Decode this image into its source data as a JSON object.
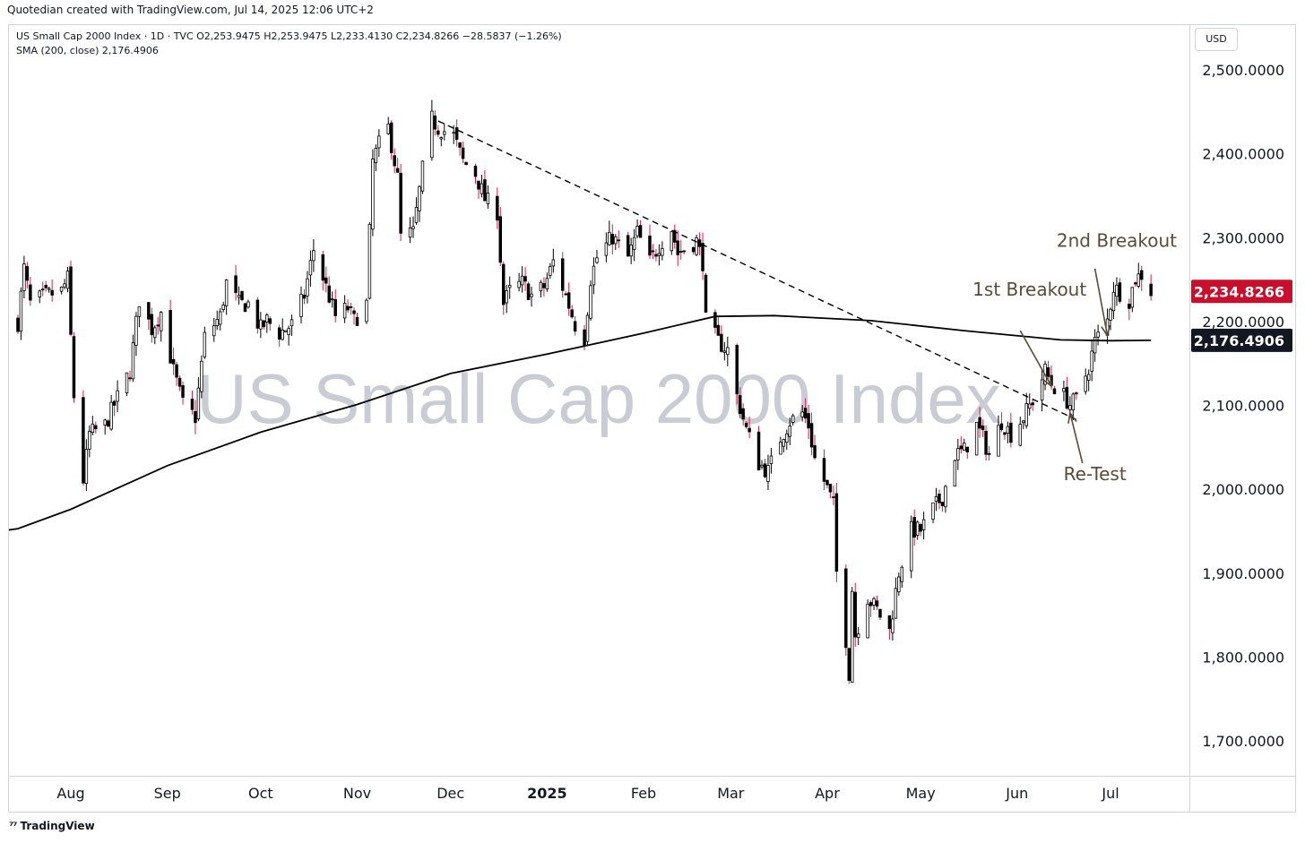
{
  "header": {
    "credit": "Quotedian created with TradingView.com, Jul 14, 2025 12:06 UTC+2",
    "legend_main": "US Small Cap 2000 Index · 1D · TVC  O2,253.9475  H2,253.9475  L2,233.4130  C2,234.8266  −28.5837 (−1.26%)",
    "legend_sma": "SMA (200, close)  2,176.4906"
  },
  "currency_label": "USD",
  "footer_logo": "TradingView",
  "colors": {
    "up_candle": "#ffffff",
    "down_candle": "#e0194e",
    "candle_outline": "#000000",
    "sma": "#000000",
    "last_price_badge": "#c8102e",
    "sma_badge": "#131722",
    "watermark": "#c9ccd4",
    "annotation": "#5a4a36"
  },
  "chart_data": {
    "type": "candlestick",
    "title": "US Small Cap 2000 Index",
    "watermark": "US Small Cap 2000 Index",
    "ylim": [
      1680,
      2540
    ],
    "y_ticks": [
      "2,500.0000",
      "2,400.0000",
      "2,300.0000",
      "2,200.0000",
      "2,100.0000",
      "2,000.0000",
      "1,900.0000",
      "1,800.0000",
      "1,700.0000"
    ],
    "y_tick_values": [
      2500,
      2400,
      2300,
      2200,
      2100,
      2000,
      1900,
      1800,
      1700
    ],
    "x_ticks": [
      {
        "label": "Aug",
        "date": "2024-08-01",
        "bold": false
      },
      {
        "label": "Sep",
        "date": "2024-09-01",
        "bold": false
      },
      {
        "label": "Oct",
        "date": "2024-10-01",
        "bold": false
      },
      {
        "label": "Nov",
        "date": "2024-11-01",
        "bold": false
      },
      {
        "label": "Dec",
        "date": "2024-12-01",
        "bold": false
      },
      {
        "label": "2025",
        "date": "2025-01-01",
        "bold": true
      },
      {
        "label": "Feb",
        "date": "2025-02-01",
        "bold": false
      },
      {
        "label": "Mar",
        "date": "2025-03-01",
        "bold": false
      },
      {
        "label": "Apr",
        "date": "2025-04-01",
        "bold": false
      },
      {
        "label": "May",
        "date": "2025-05-01",
        "bold": false
      },
      {
        "label": "Jun",
        "date": "2025-06-01",
        "bold": false
      },
      {
        "label": "Jul",
        "date": "2025-07-01",
        "bold": false
      }
    ],
    "last_price": {
      "label": "2,234.8266",
      "value": 2234.8266
    },
    "sma_last": {
      "label": "2,176.4906",
      "value": 2176.4906
    },
    "close_path": [
      [
        "2024-07-15",
        2198
      ],
      [
        "2024-07-17",
        2262
      ],
      [
        "2024-07-19",
        2220
      ],
      [
        "2024-07-24",
        2230
      ],
      [
        "2024-07-29",
        2235
      ],
      [
        "2024-07-31",
        2250
      ],
      [
        "2024-08-02",
        2110
      ],
      [
        "2024-08-05",
        2010
      ],
      [
        "2024-08-07",
        2065
      ],
      [
        "2024-08-12",
        2075
      ],
      [
        "2024-08-15",
        2100
      ],
      [
        "2024-08-20",
        2140
      ],
      [
        "2024-08-23",
        2225
      ],
      [
        "2024-08-27",
        2190
      ],
      [
        "2024-08-30",
        2210
      ],
      [
        "2024-09-03",
        2140
      ],
      [
        "2024-09-06",
        2100
      ],
      [
        "2024-09-10",
        2085
      ],
      [
        "2024-09-13",
        2180
      ],
      [
        "2024-09-18",
        2205
      ],
      [
        "2024-09-20",
        2245
      ],
      [
        "2024-09-24",
        2220
      ],
      [
        "2024-09-27",
        2220
      ],
      [
        "2024-10-01",
        2190
      ],
      [
        "2024-10-03",
        2200
      ],
      [
        "2024-10-07",
        2185
      ],
      [
        "2024-10-11",
        2195
      ],
      [
        "2024-10-15",
        2230
      ],
      [
        "2024-10-18",
        2285
      ],
      [
        "2024-10-22",
        2240
      ],
      [
        "2024-10-25",
        2205
      ],
      [
        "2024-10-29",
        2215
      ],
      [
        "2024-10-31",
        2200
      ],
      [
        "2024-11-04",
        2220
      ],
      [
        "2024-11-06",
        2390
      ],
      [
        "2024-11-08",
        2410
      ],
      [
        "2024-11-11",
        2430
      ],
      [
        "2024-11-14",
        2370
      ],
      [
        "2024-11-15",
        2300
      ],
      [
        "2024-11-19",
        2305
      ],
      [
        "2024-11-22",
        2380
      ],
      [
        "2024-11-25",
        2440
      ],
      [
        "2024-11-27",
        2430
      ],
      [
        "2024-12-02",
        2420
      ],
      [
        "2024-12-05",
        2390
      ],
      [
        "2024-12-09",
        2375
      ],
      [
        "2024-12-12",
        2345
      ],
      [
        "2024-12-16",
        2330
      ],
      [
        "2024-12-18",
        2220
      ],
      [
        "2024-12-20",
        2235
      ],
      [
        "2024-12-24",
        2245
      ],
      [
        "2024-12-27",
        2230
      ],
      [
        "2024-12-31",
        2240
      ],
      [
        "2025-01-03",
        2270
      ],
      [
        "2025-01-07",
        2230
      ],
      [
        "2025-01-10",
        2195
      ],
      [
        "2025-01-13",
        2180
      ],
      [
        "2025-01-15",
        2250
      ],
      [
        "2025-01-17",
        2275
      ],
      [
        "2025-01-22",
        2300
      ],
      [
        "2025-01-24",
        2290
      ],
      [
        "2025-01-27",
        2275
      ],
      [
        "2025-01-30",
        2305
      ],
      [
        "2025-02-03",
        2270
      ],
      [
        "2025-02-06",
        2290
      ],
      [
        "2025-02-10",
        2310
      ],
      [
        "2025-02-12",
        2280
      ],
      [
        "2025-02-14",
        2285
      ],
      [
        "2025-02-18",
        2295
      ],
      [
        "2025-02-20",
        2270
      ],
      [
        "2025-02-21",
        2200
      ],
      [
        "2025-02-25",
        2175
      ],
      [
        "2025-02-28",
        2165
      ],
      [
        "2025-03-03",
        2110
      ],
      [
        "2025-03-06",
        2070
      ],
      [
        "2025-03-10",
        2030
      ],
      [
        "2025-03-13",
        2020
      ],
      [
        "2025-03-17",
        2060
      ],
      [
        "2025-03-20",
        2080
      ],
      [
        "2025-03-24",
        2090
      ],
      [
        "2025-03-26",
        2075
      ],
      [
        "2025-03-28",
        2035
      ],
      [
        "2025-04-01",
        2000
      ],
      [
        "2025-04-03",
        1980
      ],
      [
        "2025-04-04",
        1900
      ],
      [
        "2025-04-07",
        1820
      ],
      [
        "2025-04-08",
        1780
      ],
      [
        "2025-04-09",
        1880
      ],
      [
        "2025-04-10",
        1825
      ],
      [
        "2025-04-14",
        1870
      ],
      [
        "2025-04-17",
        1855
      ],
      [
        "2025-04-21",
        1830
      ],
      [
        "2025-04-24",
        1900
      ],
      [
        "2025-04-28",
        1950
      ],
      [
        "2025-05-01",
        1950
      ],
      [
        "2025-05-05",
        1975
      ],
      [
        "2025-05-08",
        1990
      ],
      [
        "2025-05-12",
        2040
      ],
      [
        "2025-05-15",
        2045
      ],
      [
        "2025-05-19",
        2075
      ],
      [
        "2025-05-21",
        2060
      ],
      [
        "2025-05-23",
        2040
      ],
      [
        "2025-05-27",
        2080
      ],
      [
        "2025-05-30",
        2065
      ],
      [
        "2025-06-03",
        2085
      ],
      [
        "2025-06-06",
        2105
      ],
      [
        "2025-06-10",
        2140
      ],
      [
        "2025-06-12",
        2125
      ],
      [
        "2025-06-16",
        2110
      ],
      [
        "2025-06-18",
        2100
      ],
      [
        "2025-06-20",
        2105
      ],
      [
        "2025-06-24",
        2145
      ],
      [
        "2025-06-26",
        2175
      ],
      [
        "2025-06-30",
        2200
      ],
      [
        "2025-07-02",
        2240
      ],
      [
        "2025-07-07",
        2225
      ],
      [
        "2025-07-09",
        2250
      ],
      [
        "2025-07-11",
        2255
      ],
      [
        "2025-07-14",
        2234.8
      ]
    ],
    "sma_200": [
      [
        "2024-07-15",
        1952
      ],
      [
        "2024-08-01",
        1975
      ],
      [
        "2024-09-01",
        2027
      ],
      [
        "2024-10-01",
        2067
      ],
      [
        "2024-11-01",
        2100
      ],
      [
        "2024-12-01",
        2137
      ],
      [
        "2025-01-01",
        2160
      ],
      [
        "2025-02-01",
        2185
      ],
      [
        "2025-02-24",
        2205
      ],
      [
        "2025-03-15",
        2206
      ],
      [
        "2025-04-15",
        2200
      ],
      [
        "2025-05-15",
        2188
      ],
      [
        "2025-06-15",
        2177
      ],
      [
        "2025-07-01",
        2176
      ],
      [
        "2025-07-14",
        2176.49
      ]
    ],
    "trendline": [
      [
        "2024-11-27",
        2438
      ],
      [
        "2025-06-20",
        2082
      ]
    ],
    "annotations": [
      {
        "text": "2nd Breakout",
        "date": "2025-07-03",
        "value": 2288,
        "arrow_from": [
          "2025-06-26",
          2262
        ],
        "arrow_to": [
          "2025-06-30",
          2182
        ]
      },
      {
        "text": "1st Breakout",
        "date": "2025-06-05",
        "value": 2230,
        "arrow_from": [
          "2025-06-02",
          2188
        ],
        "arrow_to": [
          "2025-06-12",
          2122
        ]
      },
      {
        "text": "Re-Test",
        "date": "2025-06-26",
        "value": 2010,
        "arrow_from": [
          "2025-06-22",
          2030
        ],
        "arrow_to": [
          "2025-06-18",
          2090
        ]
      }
    ]
  }
}
